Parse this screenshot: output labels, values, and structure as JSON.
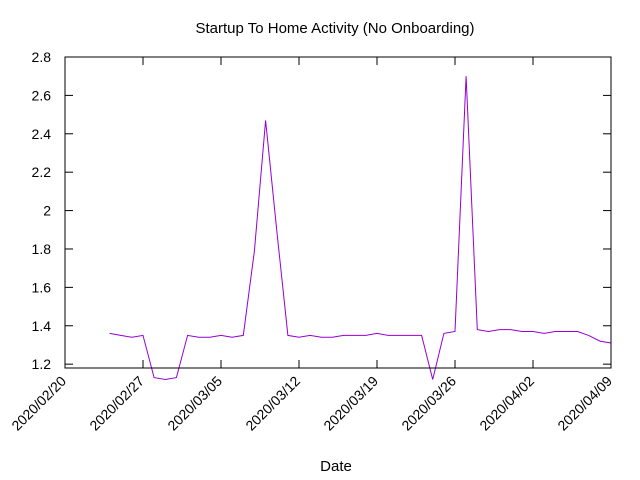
{
  "chart_data": {
    "type": "line",
    "title": "Startup To Home Activity (No Onboarding)",
    "xlabel": "Date",
    "ylabel": "",
    "x_ticks": [
      "2020/02/20",
      "2020/02/27",
      "2020/03/05",
      "2020/03/12",
      "2020/03/19",
      "2020/03/26",
      "2020/04/02",
      "2020/04/09"
    ],
    "y_ticks": [
      "1.2",
      "1.4",
      "1.6",
      "1.8",
      "2",
      "2.2",
      "2.4",
      "2.6",
      "2.8"
    ],
    "xlim": [
      "2020/02/20",
      "2020/04/09"
    ],
    "ylim": [
      1.18,
      2.8
    ],
    "grid": false,
    "series": [
      {
        "color": "#9400d3",
        "x": [
          "2020/02/24",
          "2020/02/25",
          "2020/02/26",
          "2020/02/27",
          "2020/02/28",
          "2020/02/29",
          "2020/03/01",
          "2020/03/02",
          "2020/03/03",
          "2020/03/04",
          "2020/03/05",
          "2020/03/06",
          "2020/03/07",
          "2020/03/08",
          "2020/03/09",
          "2020/03/10",
          "2020/03/11",
          "2020/03/12",
          "2020/03/13",
          "2020/03/14",
          "2020/03/15",
          "2020/03/16",
          "2020/03/17",
          "2020/03/18",
          "2020/03/19",
          "2020/03/20",
          "2020/03/21",
          "2020/03/22",
          "2020/03/23",
          "2020/03/24",
          "2020/03/25",
          "2020/03/26",
          "2020/03/27",
          "2020/03/28",
          "2020/03/29",
          "2020/03/30",
          "2020/03/31",
          "2020/04/01",
          "2020/04/02",
          "2020/04/03",
          "2020/04/04",
          "2020/04/05",
          "2020/04/06",
          "2020/04/07",
          "2020/04/08",
          "2020/04/09"
        ],
        "y": [
          1.36,
          1.35,
          1.34,
          1.35,
          1.13,
          1.12,
          1.13,
          1.35,
          1.34,
          1.34,
          1.35,
          1.34,
          1.35,
          1.79,
          2.47,
          1.9,
          1.35,
          1.34,
          1.35,
          1.34,
          1.34,
          1.35,
          1.35,
          1.35,
          1.36,
          1.35,
          1.35,
          1.35,
          1.35,
          1.12,
          1.36,
          1.37,
          2.7,
          1.38,
          1.37,
          1.38,
          1.38,
          1.37,
          1.37,
          1.36,
          1.37,
          1.37,
          1.37,
          1.35,
          1.32,
          1.31
        ]
      }
    ]
  }
}
